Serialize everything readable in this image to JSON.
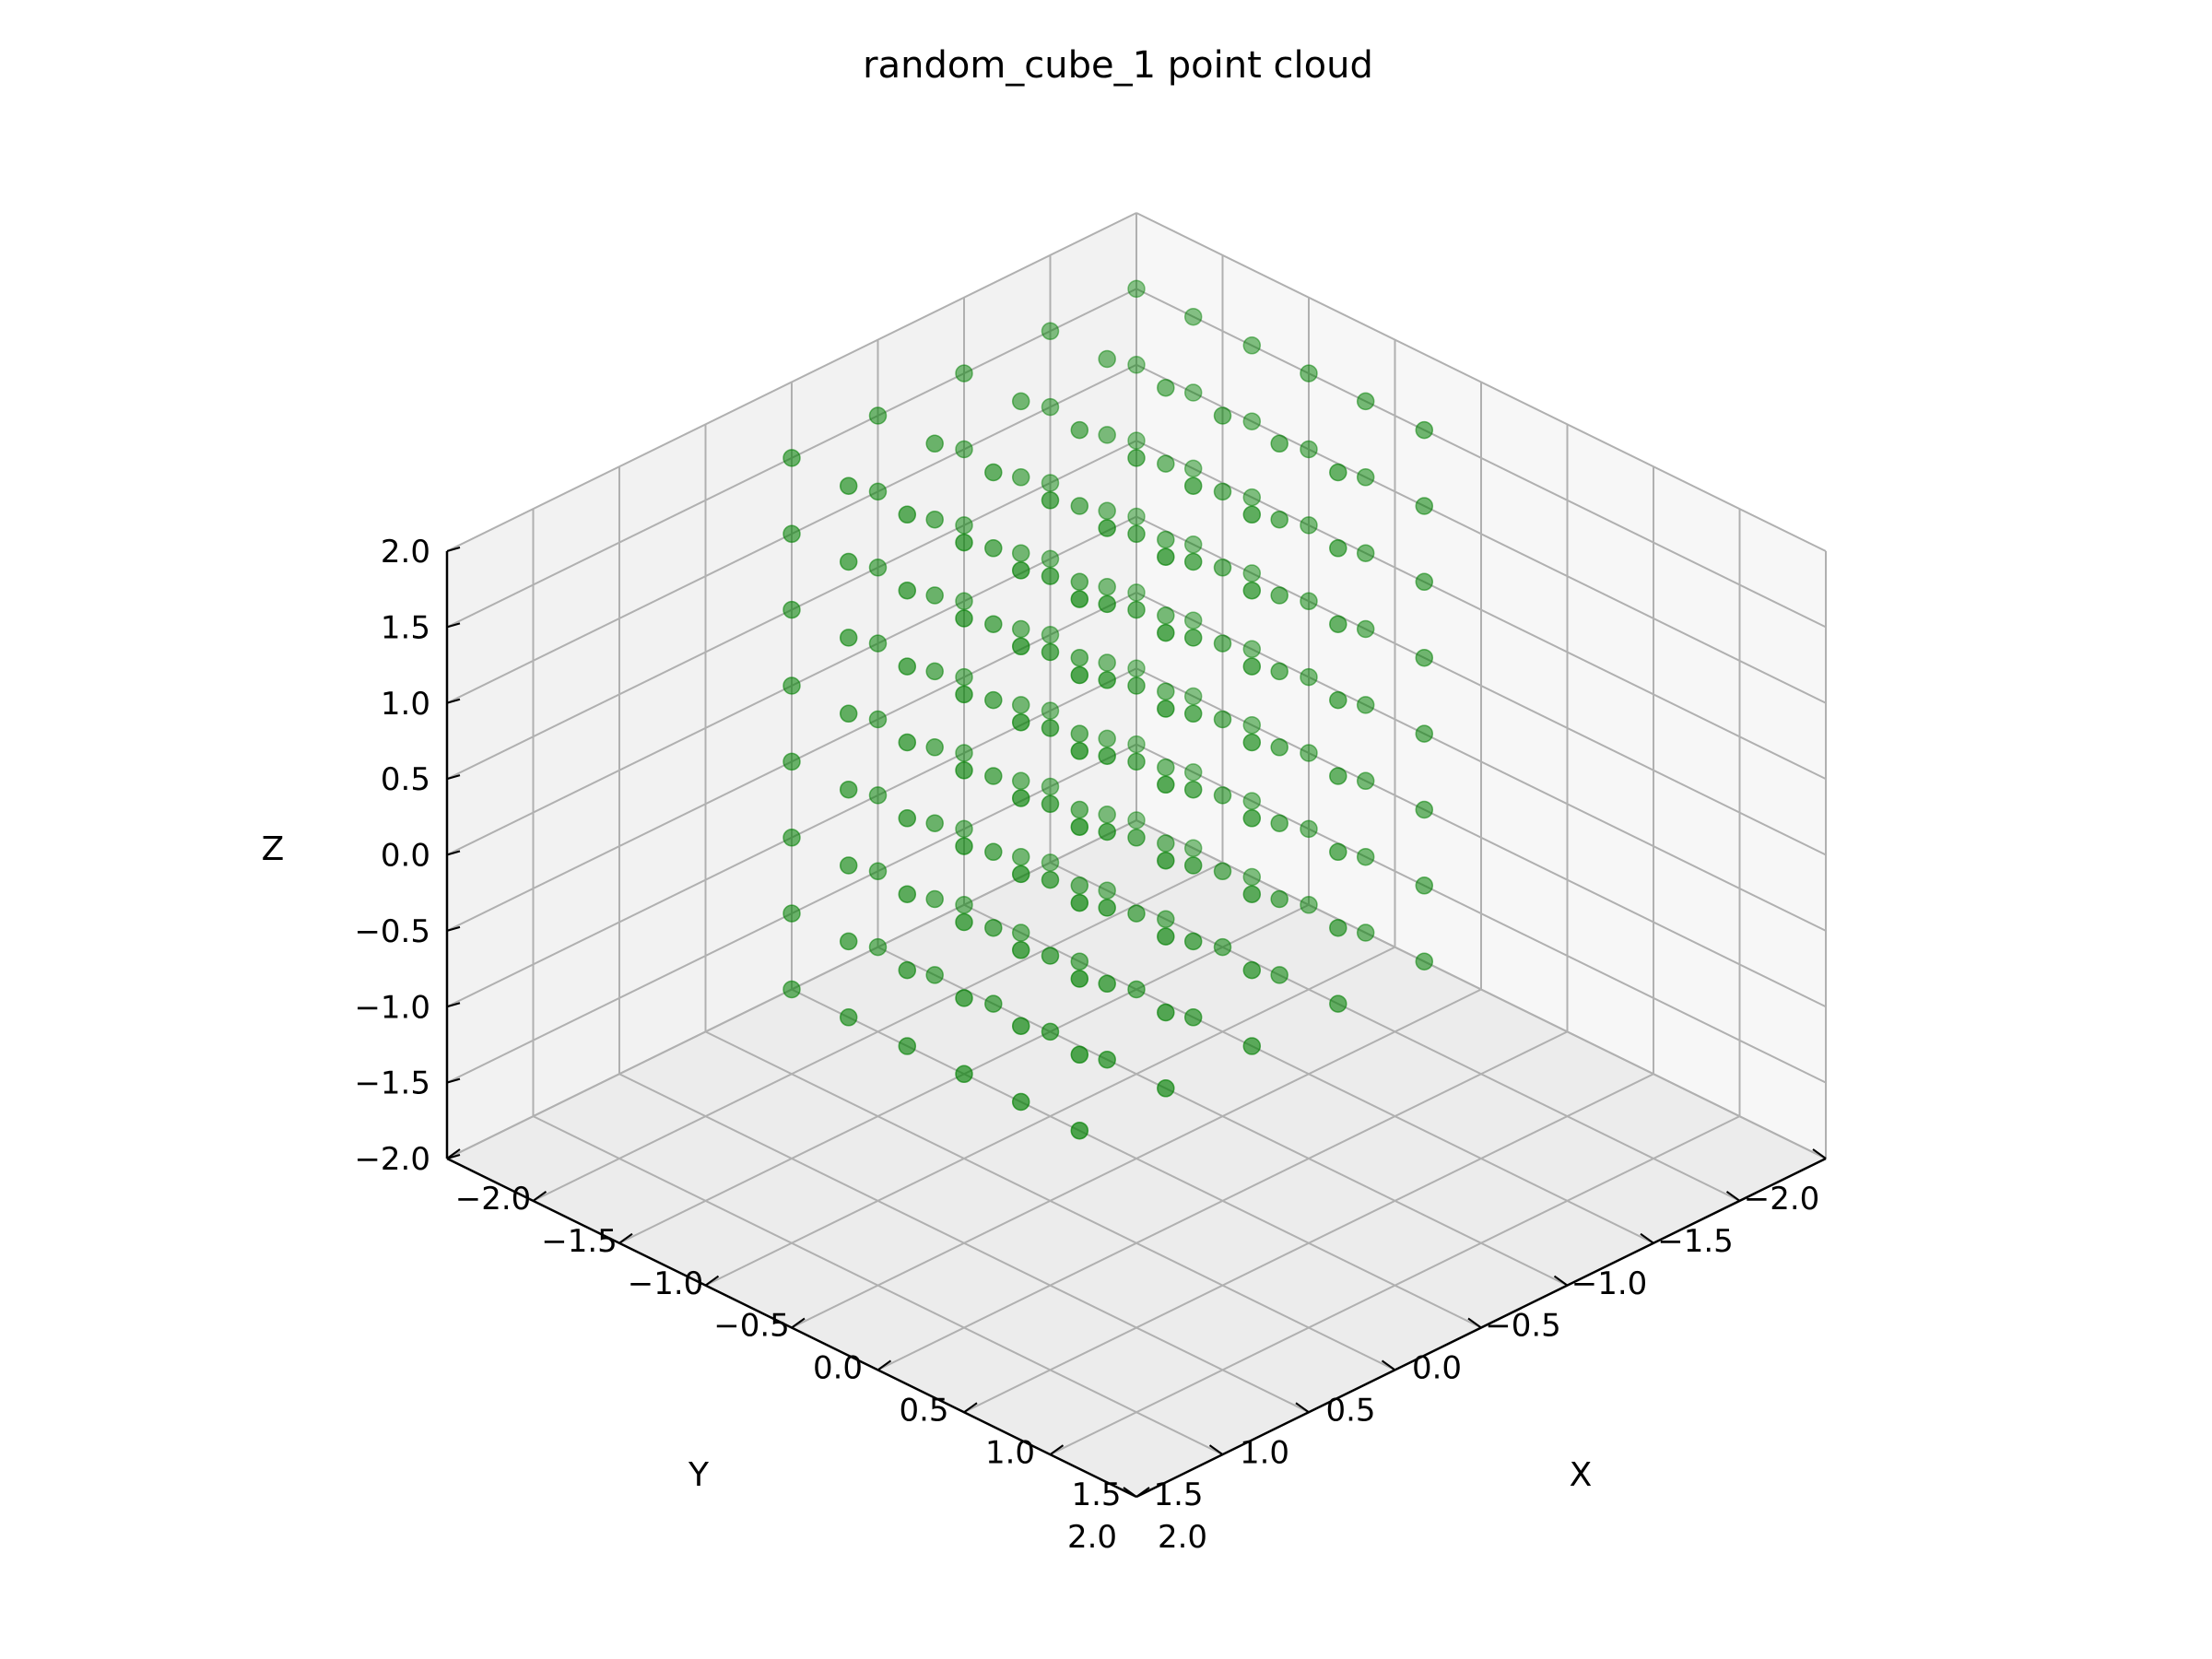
{
  "chart_data": {
    "type": "scatter",
    "projection": "3d",
    "title": "random_cube_1 point cloud",
    "xlabel": "X",
    "ylabel": "Y",
    "zlabel": "Z",
    "xlim": [
      -2.0,
      2.0
    ],
    "ylim": [
      -2.0,
      2.0
    ],
    "zlim": [
      -2.0,
      2.0
    ],
    "x_ticks": [
      "−2.0",
      "−1.5",
      "−1.0",
      "−0.5",
      "0.0",
      "0.5",
      "1.0",
      "1.5",
      "2.0"
    ],
    "y_ticks": [
      "−2.0",
      "−1.5",
      "−1.0",
      "−0.5",
      "0.0",
      "0.5",
      "1.0",
      "1.5",
      "2.0"
    ],
    "z_ticks": [
      "−2.0",
      "−1.5",
      "−1.0",
      "−0.5",
      "0.0",
      "0.5",
      "1.0",
      "1.5",
      "2.0"
    ],
    "grid": true,
    "marker_color": "#008000",
    "pane_colors": [
      "#f2f2f2",
      "#f7f7f7",
      "#ececec"
    ],
    "grid_color": "#b0b0b0",
    "series": [
      {
        "points": [
          [
            -2.0,
            -2.0,
            -2.0
          ],
          [
            -1.67,
            -2.0,
            -2.0
          ],
          [
            -1.33,
            -2.0,
            -2.0
          ],
          [
            -1.0,
            -2.0,
            -2.0
          ],
          [
            -0.67,
            -2.0,
            -2.0
          ],
          [
            -0.33,
            -2.0,
            -2.0
          ],
          [
            -2.0,
            -1.5,
            -2.0
          ],
          [
            -1.67,
            -1.5,
            -2.0
          ],
          [
            -1.33,
            -1.5,
            -2.0
          ],
          [
            -1.0,
            -1.5,
            -2.0
          ],
          [
            -0.67,
            -1.5,
            -2.0
          ],
          [
            -0.33,
            -1.5,
            -2.0
          ],
          [
            -2.0,
            -1.0,
            -2.0
          ],
          [
            -1.67,
            -1.0,
            -2.0
          ],
          [
            -1.33,
            -1.0,
            -2.0
          ],
          [
            -1.0,
            -1.0,
            -2.0
          ],
          [
            -0.67,
            -1.0,
            -2.0
          ],
          [
            -0.33,
            -1.0,
            -2.0
          ],
          [
            -2.0,
            -0.5,
            -2.0
          ],
          [
            -1.67,
            -0.5,
            -2.0
          ],
          [
            -1.33,
            -0.5,
            -2.0
          ],
          [
            -1.0,
            -0.5,
            -2.0
          ],
          [
            -0.67,
            -0.5,
            -2.0
          ],
          [
            -0.33,
            -0.5,
            -2.0
          ],
          [
            -2.0,
            0.0,
            -2.0
          ],
          [
            -1.67,
            0.0,
            -2.0
          ],
          [
            -1.33,
            0.0,
            -2.0
          ],
          [
            -1.0,
            0.0,
            -2.0
          ],
          [
            -0.67,
            0.0,
            -2.0
          ],
          [
            -0.33,
            0.0,
            -2.0
          ],
          [
            -2.0,
            -2.0,
            -1.5
          ],
          [
            -1.67,
            -2.0,
            -1.5
          ],
          [
            -1.33,
            -2.0,
            -1.5
          ],
          [
            -1.0,
            -2.0,
            -1.5
          ],
          [
            -0.67,
            -2.0,
            -1.5
          ],
          [
            -0.33,
            -2.0,
            -1.5
          ],
          [
            -2.0,
            -1.5,
            -1.5
          ],
          [
            -1.67,
            -1.5,
            -1.5
          ],
          [
            -1.33,
            -1.5,
            -1.5
          ],
          [
            -1.0,
            -1.5,
            -1.5
          ],
          [
            -0.67,
            -1.5,
            -1.5
          ],
          [
            -0.33,
            -1.5,
            -1.5
          ],
          [
            -2.0,
            -1.0,
            -1.5
          ],
          [
            -1.67,
            -1.0,
            -1.5
          ],
          [
            -1.33,
            -1.0,
            -1.5
          ],
          [
            -1.0,
            -1.0,
            -1.5
          ],
          [
            -0.67,
            -1.0,
            -1.5
          ],
          [
            -0.33,
            -1.0,
            -1.5
          ],
          [
            -2.0,
            -0.5,
            -1.5
          ],
          [
            -1.67,
            -0.5,
            -1.5
          ],
          [
            -1.33,
            -0.5,
            -1.5
          ],
          [
            -1.0,
            -0.5,
            -1.5
          ],
          [
            -0.67,
            -0.5,
            -1.5
          ],
          [
            -0.33,
            -0.5,
            -1.5
          ],
          [
            -2.0,
            0.0,
            -1.5
          ],
          [
            -1.67,
            0.0,
            -1.5
          ],
          [
            -1.33,
            0.0,
            -1.5
          ],
          [
            -1.0,
            0.0,
            -1.5
          ],
          [
            -0.67,
            0.0,
            -1.5
          ],
          [
            -0.33,
            0.0,
            -1.5
          ],
          [
            -2.0,
            -2.0,
            -1.0
          ],
          [
            -1.67,
            -2.0,
            -1.0
          ],
          [
            -1.33,
            -2.0,
            -1.0
          ],
          [
            -1.0,
            -2.0,
            -1.0
          ],
          [
            -0.67,
            -2.0,
            -1.0
          ],
          [
            -0.33,
            -2.0,
            -1.0
          ],
          [
            -2.0,
            -1.5,
            -1.0
          ],
          [
            -1.67,
            -1.5,
            -1.0
          ],
          [
            -1.33,
            -1.5,
            -1.0
          ],
          [
            -1.0,
            -1.5,
            -1.0
          ],
          [
            -0.67,
            -1.5,
            -1.0
          ],
          [
            -0.33,
            -1.5,
            -1.0
          ],
          [
            -2.0,
            -1.0,
            -1.0
          ],
          [
            -1.67,
            -1.0,
            -1.0
          ],
          [
            -1.33,
            -1.0,
            -1.0
          ],
          [
            -1.0,
            -1.0,
            -1.0
          ],
          [
            -0.67,
            -1.0,
            -1.0
          ],
          [
            -0.33,
            -1.0,
            -1.0
          ],
          [
            -2.0,
            -0.5,
            -1.0
          ],
          [
            -1.67,
            -0.5,
            -1.0
          ],
          [
            -1.33,
            -0.5,
            -1.0
          ],
          [
            -1.0,
            -0.5,
            -1.0
          ],
          [
            -0.67,
            -0.5,
            -1.0
          ],
          [
            -0.33,
            -0.5,
            -1.0
          ],
          [
            -2.0,
            0.0,
            -1.0
          ],
          [
            -1.67,
            0.0,
            -1.0
          ],
          [
            -1.33,
            0.0,
            -1.0
          ],
          [
            -1.0,
            0.0,
            -1.0
          ],
          [
            -0.67,
            0.0,
            -1.0
          ],
          [
            -0.33,
            0.0,
            -1.0
          ],
          [
            -2.0,
            -2.0,
            -0.5
          ],
          [
            -1.67,
            -2.0,
            -0.5
          ],
          [
            -1.33,
            -2.0,
            -0.5
          ],
          [
            -1.0,
            -2.0,
            -0.5
          ],
          [
            -0.67,
            -2.0,
            -0.5
          ],
          [
            -0.33,
            -2.0,
            -0.5
          ],
          [
            -2.0,
            -1.5,
            -0.5
          ],
          [
            -1.67,
            -1.5,
            -0.5
          ],
          [
            -1.33,
            -1.5,
            -0.5
          ],
          [
            -1.0,
            -1.5,
            -0.5
          ],
          [
            -0.67,
            -1.5,
            -0.5
          ],
          [
            -0.33,
            -1.5,
            -0.5
          ],
          [
            -2.0,
            -1.0,
            -0.5
          ],
          [
            -1.67,
            -1.0,
            -0.5
          ],
          [
            -1.33,
            -1.0,
            -0.5
          ],
          [
            -1.0,
            -1.0,
            -0.5
          ],
          [
            -0.67,
            -1.0,
            -0.5
          ],
          [
            -0.33,
            -1.0,
            -0.5
          ],
          [
            -2.0,
            -0.5,
            -0.5
          ],
          [
            -1.67,
            -0.5,
            -0.5
          ],
          [
            -1.33,
            -0.5,
            -0.5
          ],
          [
            -1.0,
            -0.5,
            -0.5
          ],
          [
            -0.67,
            -0.5,
            -0.5
          ],
          [
            -0.33,
            -0.5,
            -0.5
          ],
          [
            -2.0,
            0.0,
            -0.5
          ],
          [
            -1.67,
            0.0,
            -0.5
          ],
          [
            -1.33,
            0.0,
            -0.5
          ],
          [
            -1.0,
            0.0,
            -0.5
          ],
          [
            -0.67,
            0.0,
            -0.5
          ],
          [
            -0.33,
            0.0,
            -0.5
          ],
          [
            -2.0,
            -2.0,
            0.0
          ],
          [
            -1.67,
            -2.0,
            0.0
          ],
          [
            -1.33,
            -2.0,
            0.0
          ],
          [
            -1.0,
            -2.0,
            0.0
          ],
          [
            -0.67,
            -2.0,
            0.0
          ],
          [
            -0.33,
            -2.0,
            0.0
          ],
          [
            -2.0,
            -1.5,
            0.0
          ],
          [
            -1.67,
            -1.5,
            0.0
          ],
          [
            -1.33,
            -1.5,
            0.0
          ],
          [
            -1.0,
            -1.5,
            0.0
          ],
          [
            -0.67,
            -1.5,
            0.0
          ],
          [
            -0.33,
            -1.5,
            0.0
          ],
          [
            -2.0,
            -1.0,
            0.0
          ],
          [
            -1.67,
            -1.0,
            0.0
          ],
          [
            -1.33,
            -1.0,
            0.0
          ],
          [
            -1.0,
            -1.0,
            0.0
          ],
          [
            -0.67,
            -1.0,
            0.0
          ],
          [
            -0.33,
            -1.0,
            0.0
          ],
          [
            -2.0,
            -0.5,
            0.0
          ],
          [
            -1.67,
            -0.5,
            0.0
          ],
          [
            -1.33,
            -0.5,
            0.0
          ],
          [
            -1.0,
            -0.5,
            0.0
          ],
          [
            -0.67,
            -0.5,
            0.0
          ],
          [
            -0.33,
            -0.5,
            0.0
          ],
          [
            -2.0,
            0.0,
            0.0
          ],
          [
            -1.67,
            0.0,
            0.0
          ],
          [
            -1.33,
            0.0,
            0.0
          ],
          [
            -1.0,
            0.0,
            0.0
          ],
          [
            -0.67,
            0.0,
            0.0
          ],
          [
            -0.33,
            0.0,
            0.0
          ],
          [
            -2.0,
            -2.0,
            0.5
          ],
          [
            -1.67,
            -2.0,
            0.5
          ],
          [
            -1.33,
            -2.0,
            0.5
          ],
          [
            -1.0,
            -2.0,
            0.5
          ],
          [
            -0.67,
            -2.0,
            0.5
          ],
          [
            -0.33,
            -2.0,
            0.5
          ],
          [
            -2.0,
            -1.5,
            0.5
          ],
          [
            -1.67,
            -1.5,
            0.5
          ],
          [
            -1.33,
            -1.5,
            0.5
          ],
          [
            -1.0,
            -1.5,
            0.5
          ],
          [
            -0.67,
            -1.5,
            0.5
          ],
          [
            -0.33,
            -1.5,
            0.5
          ],
          [
            -2.0,
            -1.0,
            0.5
          ],
          [
            -1.67,
            -1.0,
            0.5
          ],
          [
            -1.33,
            -1.0,
            0.5
          ],
          [
            -1.0,
            -1.0,
            0.5
          ],
          [
            -0.67,
            -1.0,
            0.5
          ],
          [
            -0.33,
            -1.0,
            0.5
          ],
          [
            -2.0,
            -0.5,
            0.5
          ],
          [
            -1.67,
            -0.5,
            0.5
          ],
          [
            -1.33,
            -0.5,
            0.5
          ],
          [
            -1.0,
            -0.5,
            0.5
          ],
          [
            -0.67,
            -0.5,
            0.5
          ],
          [
            -0.33,
            -0.5,
            0.5
          ],
          [
            -2.0,
            0.0,
            0.5
          ],
          [
            -1.67,
            0.0,
            0.5
          ],
          [
            -1.33,
            0.0,
            0.5
          ],
          [
            -1.0,
            0.0,
            0.5
          ],
          [
            -0.67,
            0.0,
            0.5
          ],
          [
            -0.33,
            0.0,
            0.5
          ],
          [
            -2.0,
            -2.0,
            1.0
          ],
          [
            -1.67,
            -2.0,
            1.0
          ],
          [
            -1.33,
            -2.0,
            1.0
          ],
          [
            -1.0,
            -2.0,
            1.0
          ],
          [
            -0.67,
            -2.0,
            1.0
          ],
          [
            -0.33,
            -2.0,
            1.0
          ],
          [
            -2.0,
            -1.5,
            1.0
          ],
          [
            -1.67,
            -1.5,
            1.0
          ],
          [
            -1.33,
            -1.5,
            1.0
          ],
          [
            -1.0,
            -1.5,
            1.0
          ],
          [
            -0.67,
            -1.5,
            1.0
          ],
          [
            -0.33,
            -1.5,
            1.0
          ],
          [
            -2.0,
            -1.0,
            1.0
          ],
          [
            -1.67,
            -1.0,
            1.0
          ],
          [
            -1.33,
            -1.0,
            1.0
          ],
          [
            -1.0,
            -1.0,
            1.0
          ],
          [
            -0.67,
            -1.0,
            1.0
          ],
          [
            -0.33,
            -1.0,
            1.0
          ],
          [
            -2.0,
            -0.5,
            1.0
          ],
          [
            -1.67,
            -0.5,
            1.0
          ],
          [
            -1.33,
            -0.5,
            1.0
          ],
          [
            -1.0,
            -0.5,
            1.0
          ],
          [
            -0.67,
            -0.5,
            1.0
          ],
          [
            -0.33,
            -0.5,
            1.0
          ],
          [
            -2.0,
            0.0,
            1.0
          ],
          [
            -1.67,
            0.0,
            1.0
          ],
          [
            -1.33,
            0.0,
            1.0
          ],
          [
            -1.0,
            0.0,
            1.0
          ],
          [
            -0.67,
            0.0,
            1.0
          ],
          [
            -0.33,
            0.0,
            1.0
          ],
          [
            -2.0,
            -2.0,
            1.5
          ],
          [
            -1.67,
            -2.0,
            1.5
          ],
          [
            -1.33,
            -2.0,
            1.5
          ],
          [
            -1.0,
            -2.0,
            1.5
          ],
          [
            -0.67,
            -2.0,
            1.5
          ],
          [
            -0.33,
            -2.0,
            1.5
          ],
          [
            -2.0,
            -1.5,
            1.5
          ],
          [
            -1.67,
            -1.5,
            1.5
          ],
          [
            -1.33,
            -1.5,
            1.5
          ],
          [
            -1.0,
            -1.5,
            1.5
          ],
          [
            -0.67,
            -1.5,
            1.5
          ],
          [
            -0.33,
            -1.5,
            1.5
          ],
          [
            -2.0,
            -1.0,
            1.5
          ],
          [
            -1.67,
            -1.0,
            1.5
          ],
          [
            -1.33,
            -1.0,
            1.5
          ],
          [
            -1.0,
            -1.0,
            1.5
          ],
          [
            -0.67,
            -1.0,
            1.5
          ],
          [
            -0.33,
            -1.0,
            1.5
          ],
          [
            -2.0,
            -0.5,
            1.5
          ],
          [
            -1.67,
            -0.5,
            1.5
          ],
          [
            -1.33,
            -0.5,
            1.5
          ],
          [
            -1.0,
            -0.5,
            1.5
          ],
          [
            -0.67,
            -0.5,
            1.5
          ],
          [
            -0.33,
            -0.5,
            1.5
          ],
          [
            -2.0,
            0.0,
            1.5
          ],
          [
            -1.67,
            0.0,
            1.5
          ],
          [
            -1.33,
            0.0,
            1.5
          ],
          [
            -1.0,
            0.0,
            1.5
          ],
          [
            -0.67,
            0.0,
            1.5
          ],
          [
            -0.33,
            0.0,
            1.5
          ]
        ]
      }
    ]
  }
}
